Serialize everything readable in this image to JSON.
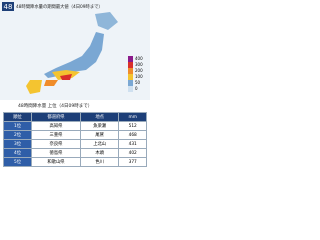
{
  "header": {
    "badge": "48",
    "title": "48時間降水量の期間最大値（4日09時まで）"
  },
  "legend": {
    "labels": [
      "400",
      "300",
      "200",
      "100",
      "50",
      "0"
    ]
  },
  "table": {
    "title": "48時間降水量 上位（4日09時まで）",
    "columns": [
      "順位",
      "都道府県",
      "地点",
      "mm"
    ],
    "rows": [
      [
        "1位",
        "高知県",
        "魚梁瀬",
        "512"
      ],
      [
        "2位",
        "三重県",
        "尾鷲",
        "468"
      ],
      [
        "3位",
        "奈良県",
        "上北山",
        "431"
      ],
      [
        "4位",
        "徳島県",
        "木頭",
        "402"
      ],
      [
        "5位",
        "和歌山県",
        "色川",
        "377"
      ]
    ]
  }
}
